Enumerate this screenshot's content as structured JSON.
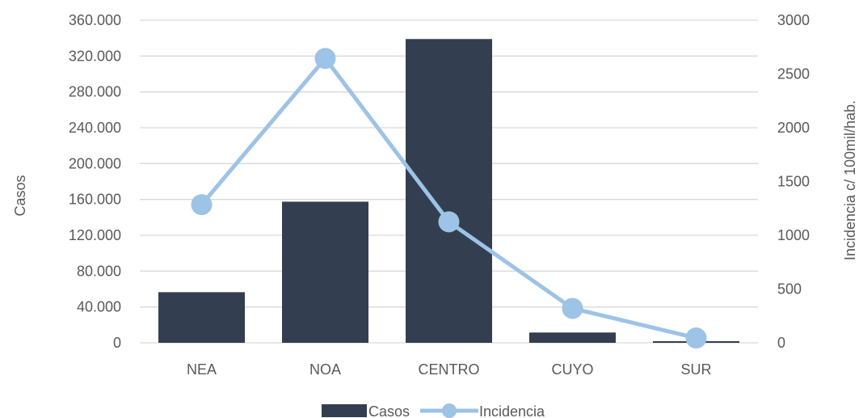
{
  "chart_data": {
    "type": "bar+line",
    "categories": [
      "NEA",
      "NOA",
      "CENTRO",
      "CUYO",
      "SUR"
    ],
    "series": [
      {
        "name": "Casos",
        "type": "bar",
        "axis": "left",
        "values": [
          56500,
          157500,
          339000,
          11500,
          1800
        ]
      },
      {
        "name": "Incidencia",
        "type": "line",
        "axis": "right",
        "values": [
          1285,
          2645,
          1125,
          320,
          45
        ]
      }
    ],
    "ylabel": "Casos",
    "y2label": "Incidencia c/ 100mil/hab.",
    "ylim": [
      0,
      360000
    ],
    "y2lim": [
      0,
      3000
    ],
    "yticks": [
      "0",
      "40.000",
      "80.000",
      "120.000",
      "160.000",
      "200.000",
      "240.000",
      "280.000",
      "320.000",
      "360.000"
    ],
    "y2ticks": [
      "0",
      "500",
      "1000",
      "1500",
      "2000",
      "2500",
      "3000"
    ],
    "grid": true,
    "legend_position": "bottom",
    "colors": {
      "bar": "#333f50",
      "line": "#9dc3e6",
      "grid": "#d9d9d9",
      "text": "#595959"
    }
  }
}
